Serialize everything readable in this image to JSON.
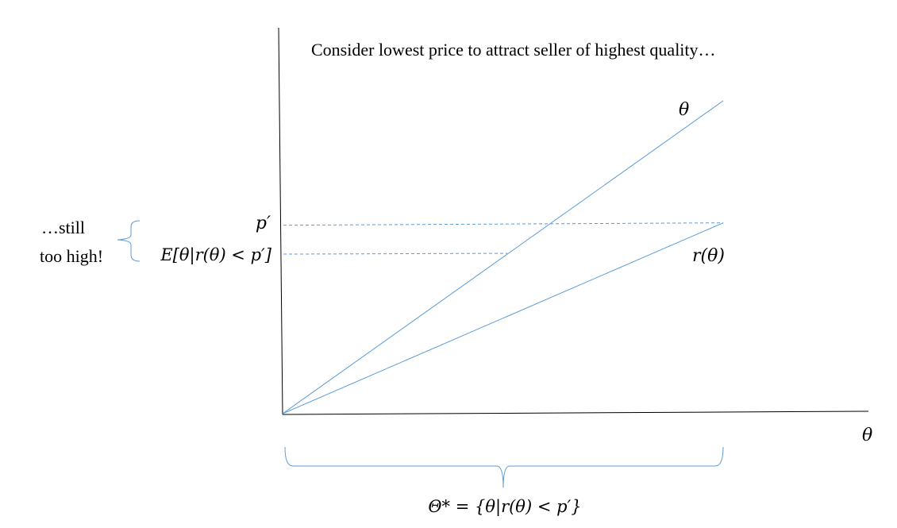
{
  "caption": "Consider lowest price to attract seller of highest quality…",
  "line_color": "#5b9bd5",
  "labels": {
    "theta_line": "θ",
    "r_line": "r(θ)",
    "x_axis": "θ",
    "p_prime": "p′",
    "expectation": "E[θ|r(θ) < p′]",
    "theta_star": "Θ* = {θ|r(θ) < p′}"
  },
  "side_note": [
    "…still",
    "too high!"
  ],
  "chart_data": {
    "type": "line",
    "title": "Consider lowest price to attract seller of highest quality…",
    "xlabel": "θ",
    "ylabel": "",
    "series": [
      {
        "name": "θ",
        "x": [
          0,
          1
        ],
        "y": [
          0,
          1
        ]
      },
      {
        "name": "r(θ)",
        "x": [
          0,
          1
        ],
        "y": [
          0,
          0.61
        ]
      }
    ],
    "reference_levels": [
      {
        "label": "p′",
        "y": 0.61
      },
      {
        "label": "E[θ|r(θ) < p′]",
        "y": 0.51
      }
    ],
    "xlim": [
      0,
      1.33
    ],
    "ylim": [
      0,
      1.22
    ],
    "grid": false,
    "legend": "none"
  }
}
